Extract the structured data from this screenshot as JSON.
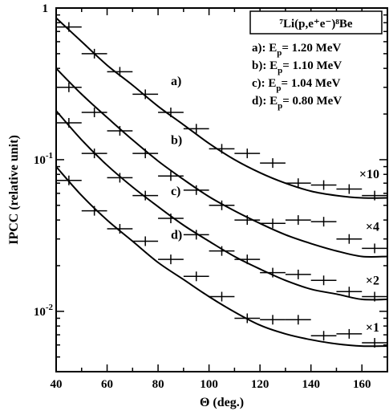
{
  "chart_data": {
    "type": "scatter",
    "title": "⁷Li(p,e⁺e⁻)⁸Be",
    "xlabel": "Θ (deg.)",
    "ylabel": "IPCC (relative unit)",
    "x_scale": "linear",
    "y_scale": "log",
    "xlim": [
      40,
      170
    ],
    "ylim": [
      0.004,
      1
    ],
    "x_ticks": [
      40,
      60,
      80,
      100,
      120,
      140,
      160
    ],
    "y_tick_labels": [
      {
        "value": 1,
        "base": "1",
        "exp": ""
      },
      {
        "value": 0.1,
        "base": "10",
        "exp": "-1"
      },
      {
        "value": 0.01,
        "base": "10",
        "exp": "-2"
      }
    ],
    "x_error_half_width": 5,
    "legend_placement": "top-right",
    "legend": [
      {
        "text": "a): E",
        "sub": "p",
        "rest": "= 1.20 MeV"
      },
      {
        "text": "b): E",
        "sub": "p",
        "rest": "= 1.10 MeV"
      },
      {
        "text": "c): E",
        "sub": "p",
        "rest": "= 1.04 MeV"
      },
      {
        "text": "d): E",
        "sub": "p",
        "rest": "= 0.80 MeV"
      }
    ],
    "series": [
      {
        "name": "a)",
        "multiplier": "×10",
        "x": [
          45,
          55,
          65,
          75,
          85,
          95,
          105,
          115,
          125,
          135,
          145,
          155,
          165
        ],
        "y": [
          0.75,
          0.5,
          0.38,
          0.27,
          0.205,
          0.16,
          0.118,
          0.11,
          0.095,
          0.07,
          0.068,
          0.064,
          0.058
        ],
        "fit_x": [
          40,
          50,
          60,
          70,
          80,
          90,
          100,
          110,
          120,
          130,
          140,
          150,
          160,
          170
        ],
        "fit_y": [
          0.86,
          0.6,
          0.42,
          0.31,
          0.225,
          0.17,
          0.128,
          0.1,
          0.082,
          0.07,
          0.062,
          0.058,
          0.056,
          0.056
        ]
      },
      {
        "name": "b)",
        "multiplier": "×4",
        "x": [
          45,
          55,
          65,
          75,
          85,
          95,
          105,
          115,
          125,
          135,
          145,
          155,
          165
        ],
        "y": [
          0.3,
          0.205,
          0.155,
          0.11,
          0.078,
          0.063,
          0.05,
          0.04,
          0.038,
          0.04,
          0.039,
          0.03,
          0.026
        ],
        "fit_x": [
          40,
          50,
          60,
          70,
          80,
          90,
          100,
          110,
          120,
          130,
          140,
          150,
          160,
          170
        ],
        "fit_y": [
          0.4,
          0.27,
          0.19,
          0.135,
          0.098,
          0.074,
          0.057,
          0.046,
          0.038,
          0.032,
          0.028,
          0.025,
          0.023,
          0.023
        ]
      },
      {
        "name": "c)",
        "multiplier": "×2",
        "x": [
          45,
          55,
          65,
          75,
          85,
          95,
          105,
          115,
          125,
          135,
          145,
          155,
          165
        ],
        "y": [
          0.175,
          0.11,
          0.076,
          0.058,
          0.041,
          0.032,
          0.025,
          0.022,
          0.018,
          0.0175,
          0.016,
          0.0135,
          0.0125
        ],
        "fit_x": [
          40,
          50,
          60,
          70,
          80,
          90,
          100,
          110,
          120,
          130,
          140,
          150,
          160,
          170
        ],
        "fit_y": [
          0.21,
          0.135,
          0.092,
          0.066,
          0.049,
          0.037,
          0.029,
          0.023,
          0.019,
          0.016,
          0.014,
          0.013,
          0.012,
          0.012
        ]
      },
      {
        "name": "d)",
        "multiplier": "×1",
        "x": [
          45,
          55,
          65,
          75,
          85,
          95,
          105,
          115,
          125,
          135,
          145,
          155,
          165
        ],
        "y": [
          0.073,
          0.046,
          0.035,
          0.029,
          0.022,
          0.017,
          0.0125,
          0.009,
          0.0088,
          0.0088,
          0.0069,
          0.0071,
          0.0062
        ],
        "fit_x": [
          40,
          50,
          60,
          70,
          80,
          90,
          100,
          110,
          120,
          130,
          140,
          150,
          160,
          170
        ],
        "fit_y": [
          0.09,
          0.058,
          0.04,
          0.029,
          0.021,
          0.0162,
          0.0125,
          0.0099,
          0.0081,
          0.0071,
          0.0065,
          0.0061,
          0.0059,
          0.0059
        ]
      }
    ]
  }
}
